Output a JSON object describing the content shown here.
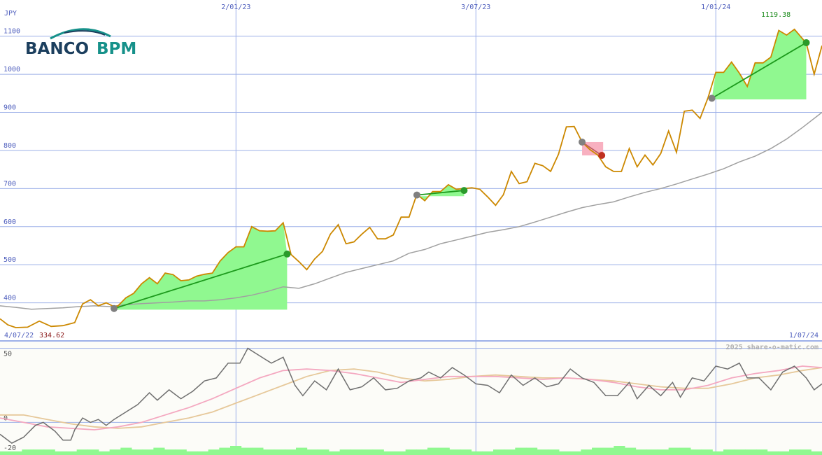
{
  "chart_data": {
    "type": "line",
    "currency": "JPY",
    "brand": {
      "word1": "BANCO",
      "word2": "BPM",
      "color_primary": "#1c3f5e",
      "color_accent": "#16918a"
    },
    "date_start": "4/07/22",
    "date_end": "1/07/24",
    "start_value": "334.62",
    "max_label": "1119.38",
    "watermark": "2025 share-o-matic.com",
    "price_axis": {
      "ticks": [
        400,
        500,
        600,
        700,
        800,
        900,
        1000,
        1100
      ],
      "ylim": [
        300,
        1195
      ]
    },
    "date_axis": {
      "ticks": [
        "2/01/23",
        "3/07/23",
        "1/01/24"
      ]
    },
    "price_series": [
      {
        "i": 0,
        "v": 358
      },
      {
        "i": 2,
        "v": 342
      },
      {
        "i": 4,
        "v": 335
      },
      {
        "i": 7,
        "v": 336
      },
      {
        "i": 10,
        "v": 352
      },
      {
        "i": 13,
        "v": 338
      },
      {
        "i": 16,
        "v": 340
      },
      {
        "i": 19,
        "v": 348
      },
      {
        "i": 21,
        "v": 397
      },
      {
        "i": 23,
        "v": 408
      },
      {
        "i": 25,
        "v": 392
      },
      {
        "i": 27,
        "v": 400
      },
      {
        "i": 29,
        "v": 390
      },
      {
        "i": 30,
        "v": 392
      },
      {
        "i": 32,
        "v": 413
      },
      {
        "i": 34,
        "v": 425
      },
      {
        "i": 36,
        "v": 450
      },
      {
        "i": 38,
        "v": 466
      },
      {
        "i": 40,
        "v": 450
      },
      {
        "i": 42,
        "v": 478
      },
      {
        "i": 44,
        "v": 474
      },
      {
        "i": 46,
        "v": 458
      },
      {
        "i": 48,
        "v": 460
      },
      {
        "i": 50,
        "v": 470
      },
      {
        "i": 52,
        "v": 475
      },
      {
        "i": 54,
        "v": 478
      },
      {
        "i": 56,
        "v": 510
      },
      {
        "i": 58,
        "v": 532
      },
      {
        "i": 60,
        "v": 547
      },
      {
        "i": 62,
        "v": 547
      },
      {
        "i": 64,
        "v": 600
      },
      {
        "i": 66,
        "v": 589
      },
      {
        "i": 68,
        "v": 588
      },
      {
        "i": 70,
        "v": 589
      },
      {
        "i": 72,
        "v": 610
      },
      {
        "i": 74,
        "v": 527
      },
      {
        "i": 76,
        "v": 508
      },
      {
        "i": 78,
        "v": 487
      },
      {
        "i": 80,
        "v": 515
      },
      {
        "i": 82,
        "v": 535
      },
      {
        "i": 84,
        "v": 580
      },
      {
        "i": 86,
        "v": 605
      },
      {
        "i": 88,
        "v": 555
      },
      {
        "i": 90,
        "v": 560
      },
      {
        "i": 92,
        "v": 580
      },
      {
        "i": 94,
        "v": 598
      },
      {
        "i": 96,
        "v": 568
      },
      {
        "i": 98,
        "v": 568
      },
      {
        "i": 100,
        "v": 578
      },
      {
        "i": 102,
        "v": 625
      },
      {
        "i": 104,
        "v": 625
      },
      {
        "i": 106,
        "v": 685
      },
      {
        "i": 108,
        "v": 668
      },
      {
        "i": 110,
        "v": 692
      },
      {
        "i": 112,
        "v": 692
      },
      {
        "i": 114,
        "v": 710
      },
      {
        "i": 116,
        "v": 698
      },
      {
        "i": 118,
        "v": 700
      },
      {
        "i": 120,
        "v": 702
      },
      {
        "i": 122,
        "v": 698
      },
      {
        "i": 124,
        "v": 678
      },
      {
        "i": 126,
        "v": 656
      },
      {
        "i": 128,
        "v": 684
      },
      {
        "i": 130,
        "v": 745
      },
      {
        "i": 132,
        "v": 713
      },
      {
        "i": 134,
        "v": 718
      },
      {
        "i": 136,
        "v": 766
      },
      {
        "i": 138,
        "v": 760
      },
      {
        "i": 140,
        "v": 745
      },
      {
        "i": 142,
        "v": 790
      },
      {
        "i": 144,
        "v": 862
      },
      {
        "i": 146,
        "v": 863
      },
      {
        "i": 148,
        "v": 822
      },
      {
        "i": 150,
        "v": 802
      },
      {
        "i": 152,
        "v": 788
      },
      {
        "i": 154,
        "v": 757
      },
      {
        "i": 156,
        "v": 745
      },
      {
        "i": 158,
        "v": 745
      },
      {
        "i": 160,
        "v": 805
      },
      {
        "i": 162,
        "v": 757
      },
      {
        "i": 164,
        "v": 788
      },
      {
        "i": 166,
        "v": 762
      },
      {
        "i": 168,
        "v": 792
      },
      {
        "i": 170,
        "v": 851
      },
      {
        "i": 172,
        "v": 795
      },
      {
        "i": 174,
        "v": 903
      },
      {
        "i": 176,
        "v": 906
      },
      {
        "i": 178,
        "v": 884
      },
      {
        "i": 180,
        "v": 938
      },
      {
        "i": 182,
        "v": 1005
      },
      {
        "i": 184,
        "v": 1005
      },
      {
        "i": 186,
        "v": 1032
      },
      {
        "i": 188,
        "v": 1003
      },
      {
        "i": 190,
        "v": 968
      },
      {
        "i": 192,
        "v": 1030
      },
      {
        "i": 194,
        "v": 1030
      },
      {
        "i": 196,
        "v": 1045
      },
      {
        "i": 198,
        "v": 1115
      },
      {
        "i": 200,
        "v": 1103
      },
      {
        "i": 202,
        "v": 1118
      },
      {
        "i": 205,
        "v": 1082
      },
      {
        "i": 207,
        "v": 1000
      },
      {
        "i": 209,
        "v": 1075
      }
    ],
    "average_series": [
      {
        "i": 0,
        "v": 392
      },
      {
        "i": 4,
        "v": 388
      },
      {
        "i": 8,
        "v": 383
      },
      {
        "i": 12,
        "v": 385
      },
      {
        "i": 16,
        "v": 387
      },
      {
        "i": 20,
        "v": 390
      },
      {
        "i": 24,
        "v": 392
      },
      {
        "i": 28,
        "v": 390
      },
      {
        "i": 32,
        "v": 395
      },
      {
        "i": 36,
        "v": 398
      },
      {
        "i": 40,
        "v": 400
      },
      {
        "i": 44,
        "v": 402
      },
      {
        "i": 48,
        "v": 405
      },
      {
        "i": 52,
        "v": 405
      },
      {
        "i": 56,
        "v": 408
      },
      {
        "i": 60,
        "v": 413
      },
      {
        "i": 64,
        "v": 420
      },
      {
        "i": 68,
        "v": 430
      },
      {
        "i": 72,
        "v": 442
      },
      {
        "i": 76,
        "v": 438
      },
      {
        "i": 80,
        "v": 450
      },
      {
        "i": 84,
        "v": 465
      },
      {
        "i": 88,
        "v": 480
      },
      {
        "i": 92,
        "v": 490
      },
      {
        "i": 96,
        "v": 500
      },
      {
        "i": 100,
        "v": 510
      },
      {
        "i": 104,
        "v": 530
      },
      {
        "i": 108,
        "v": 540
      },
      {
        "i": 112,
        "v": 555
      },
      {
        "i": 116,
        "v": 565
      },
      {
        "i": 120,
        "v": 575
      },
      {
        "i": 124,
        "v": 585
      },
      {
        "i": 128,
        "v": 592
      },
      {
        "i": 132,
        "v": 600
      },
      {
        "i": 136,
        "v": 612
      },
      {
        "i": 140,
        "v": 625
      },
      {
        "i": 144,
        "v": 638
      },
      {
        "i": 148,
        "v": 650
      },
      {
        "i": 152,
        "v": 658
      },
      {
        "i": 156,
        "v": 665
      },
      {
        "i": 160,
        "v": 678
      },
      {
        "i": 164,
        "v": 690
      },
      {
        "i": 168,
        "v": 700
      },
      {
        "i": 172,
        "v": 712
      },
      {
        "i": 176,
        "v": 725
      },
      {
        "i": 180,
        "v": 738
      },
      {
        "i": 184,
        "v": 752
      },
      {
        "i": 188,
        "v": 770
      },
      {
        "i": 192,
        "v": 785
      },
      {
        "i": 196,
        "v": 805
      },
      {
        "i": 200,
        "v": 830
      },
      {
        "i": 204,
        "v": 860
      },
      {
        "i": 209,
        "v": 900
      }
    ],
    "trades": [
      {
        "entry": {
          "i": 29,
          "v": 385
        },
        "exit": {
          "i": 73,
          "v": 528
        },
        "result": "gain"
      },
      {
        "entry": {
          "i": 106,
          "v": 683
        },
        "exit": {
          "i": 118,
          "v": 695
        },
        "result": "gain"
      },
      {
        "entry": {
          "i": 148,
          "v": 822
        },
        "exit": {
          "i": 153,
          "v": 787
        },
        "result": "loss"
      },
      {
        "entry": {
          "i": 181,
          "v": 937
        },
        "exit": {
          "i": 205,
          "v": 1083
        },
        "result": "gain"
      }
    ],
    "oscillator_axis": {
      "ticks": [
        50,
        0,
        -20
      ],
      "ylim": [
        -22,
        55
      ]
    },
    "oscillator": {
      "main": [
        {
          "i": 0,
          "v": -8
        },
        {
          "i": 3,
          "v": -14
        },
        {
          "i": 6,
          "v": -10
        },
        {
          "i": 9,
          "v": -2
        },
        {
          "i": 11,
          "v": 0
        },
        {
          "i": 14,
          "v": -6
        },
        {
          "i": 16,
          "v": -12
        },
        {
          "i": 18,
          "v": -12
        },
        {
          "i": 19,
          "v": -5
        },
        {
          "i": 21,
          "v": 3
        },
        {
          "i": 23,
          "v": 0
        },
        {
          "i": 25,
          "v": 2
        },
        {
          "i": 27,
          "v": -2
        },
        {
          "i": 29,
          "v": 2
        },
        {
          "i": 32,
          "v": 7
        },
        {
          "i": 35,
          "v": 12
        },
        {
          "i": 38,
          "v": 20
        },
        {
          "i": 40,
          "v": 15
        },
        {
          "i": 43,
          "v": 22
        },
        {
          "i": 46,
          "v": 16
        },
        {
          "i": 49,
          "v": 21
        },
        {
          "i": 52,
          "v": 28
        },
        {
          "i": 55,
          "v": 30
        },
        {
          "i": 58,
          "v": 40
        },
        {
          "i": 61,
          "v": 40
        },
        {
          "i": 63,
          "v": 50
        },
        {
          "i": 66,
          "v": 45
        },
        {
          "i": 69,
          "v": 40
        },
        {
          "i": 72,
          "v": 44
        },
        {
          "i": 75,
          "v": 25
        },
        {
          "i": 77,
          "v": 18
        },
        {
          "i": 80,
          "v": 28
        },
        {
          "i": 83,
          "v": 22
        },
        {
          "i": 86,
          "v": 36
        },
        {
          "i": 89,
          "v": 22
        },
        {
          "i": 92,
          "v": 24
        },
        {
          "i": 95,
          "v": 30
        },
        {
          "i": 98,
          "v": 22
        },
        {
          "i": 101,
          "v": 23
        },
        {
          "i": 104,
          "v": 28
        },
        {
          "i": 107,
          "v": 30
        },
        {
          "i": 109,
          "v": 34
        },
        {
          "i": 112,
          "v": 30
        },
        {
          "i": 115,
          "v": 37
        },
        {
          "i": 118,
          "v": 32
        },
        {
          "i": 121,
          "v": 26
        },
        {
          "i": 124,
          "v": 25
        },
        {
          "i": 127,
          "v": 20
        },
        {
          "i": 130,
          "v": 32
        },
        {
          "i": 133,
          "v": 25
        },
        {
          "i": 136,
          "v": 30
        },
        {
          "i": 139,
          "v": 24
        },
        {
          "i": 142,
          "v": 26
        },
        {
          "i": 145,
          "v": 36
        },
        {
          "i": 148,
          "v": 30
        },
        {
          "i": 151,
          "v": 27
        },
        {
          "i": 154,
          "v": 18
        },
        {
          "i": 157,
          "v": 18
        },
        {
          "i": 160,
          "v": 27
        },
        {
          "i": 162,
          "v": 16
        },
        {
          "i": 165,
          "v": 25
        },
        {
          "i": 168,
          "v": 18
        },
        {
          "i": 171,
          "v": 27
        },
        {
          "i": 173,
          "v": 17
        },
        {
          "i": 176,
          "v": 30
        },
        {
          "i": 179,
          "v": 28
        },
        {
          "i": 182,
          "v": 38
        },
        {
          "i": 185,
          "v": 36
        },
        {
          "i": 188,
          "v": 40
        },
        {
          "i": 190,
          "v": 30
        },
        {
          "i": 193,
          "v": 30
        },
        {
          "i": 196,
          "v": 22
        },
        {
          "i": 199,
          "v": 34
        },
        {
          "i": 202,
          "v": 38
        },
        {
          "i": 205,
          "v": 30
        },
        {
          "i": 207,
          "v": 22
        },
        {
          "i": 209,
          "v": 26
        }
      ],
      "signal_fast": [
        {
          "i": 0,
          "v": 3
        },
        {
          "i": 6,
          "v": 0
        },
        {
          "i": 12,
          "v": -3
        },
        {
          "i": 18,
          "v": -4
        },
        {
          "i": 24,
          "v": -5
        },
        {
          "i": 30,
          "v": -3
        },
        {
          "i": 36,
          "v": 0
        },
        {
          "i": 42,
          "v": 5
        },
        {
          "i": 48,
          "v": 10
        },
        {
          "i": 54,
          "v": 16
        },
        {
          "i": 60,
          "v": 23
        },
        {
          "i": 66,
          "v": 30
        },
        {
          "i": 72,
          "v": 35
        },
        {
          "i": 78,
          "v": 36
        },
        {
          "i": 84,
          "v": 35
        },
        {
          "i": 90,
          "v": 33
        },
        {
          "i": 96,
          "v": 30
        },
        {
          "i": 102,
          "v": 27
        },
        {
          "i": 108,
          "v": 29
        },
        {
          "i": 114,
          "v": 31
        },
        {
          "i": 120,
          "v": 31
        },
        {
          "i": 126,
          "v": 31
        },
        {
          "i": 132,
          "v": 30
        },
        {
          "i": 138,
          "v": 29
        },
        {
          "i": 144,
          "v": 30
        },
        {
          "i": 150,
          "v": 29
        },
        {
          "i": 156,
          "v": 27
        },
        {
          "i": 162,
          "v": 24
        },
        {
          "i": 168,
          "v": 22
        },
        {
          "i": 174,
          "v": 22
        },
        {
          "i": 180,
          "v": 25
        },
        {
          "i": 186,
          "v": 30
        },
        {
          "i": 192,
          "v": 33
        },
        {
          "i": 198,
          "v": 35
        },
        {
          "i": 204,
          "v": 38
        },
        {
          "i": 209,
          "v": 37
        }
      ],
      "signal_slow": [
        {
          "i": 0,
          "v": 5
        },
        {
          "i": 6,
          "v": 5
        },
        {
          "i": 12,
          "v": 2
        },
        {
          "i": 18,
          "v": -1
        },
        {
          "i": 24,
          "v": -3
        },
        {
          "i": 30,
          "v": -4
        },
        {
          "i": 36,
          "v": -3
        },
        {
          "i": 42,
          "v": 0
        },
        {
          "i": 48,
          "v": 3
        },
        {
          "i": 54,
          "v": 7
        },
        {
          "i": 60,
          "v": 13
        },
        {
          "i": 66,
          "v": 19
        },
        {
          "i": 72,
          "v": 25
        },
        {
          "i": 78,
          "v": 31
        },
        {
          "i": 84,
          "v": 35
        },
        {
          "i": 90,
          "v": 36
        },
        {
          "i": 96,
          "v": 34
        },
        {
          "i": 102,
          "v": 30
        },
        {
          "i": 108,
          "v": 28
        },
        {
          "i": 114,
          "v": 29
        },
        {
          "i": 120,
          "v": 31
        },
        {
          "i": 126,
          "v": 32
        },
        {
          "i": 132,
          "v": 31
        },
        {
          "i": 138,
          "v": 30
        },
        {
          "i": 144,
          "v": 30
        },
        {
          "i": 150,
          "v": 29
        },
        {
          "i": 156,
          "v": 28
        },
        {
          "i": 162,
          "v": 26
        },
        {
          "i": 168,
          "v": 24
        },
        {
          "i": 174,
          "v": 23
        },
        {
          "i": 180,
          "v": 23
        },
        {
          "i": 186,
          "v": 26
        },
        {
          "i": 192,
          "v": 30
        },
        {
          "i": 198,
          "v": 32
        },
        {
          "i": 204,
          "v": 35
        },
        {
          "i": 209,
          "v": 37
        }
      ]
    },
    "volume": [
      2,
      2,
      3,
      3,
      3,
      2,
      2,
      3,
      3,
      2,
      3,
      4,
      3,
      3,
      4,
      3,
      3,
      2,
      2,
      3,
      4,
      5,
      4,
      4,
      3,
      3,
      3,
      4,
      3,
      3,
      2,
      3,
      3,
      3,
      3,
      2,
      2,
      3,
      3,
      4,
      4,
      3,
      3,
      2,
      2,
      3,
      3,
      4,
      4,
      3,
      3,
      2,
      2,
      3,
      4,
      4,
      5,
      4,
      3,
      3,
      3,
      4,
      4,
      3,
      3,
      2,
      3,
      3,
      3,
      3,
      2,
      2,
      3,
      3,
      2
    ],
    "colors": {
      "price": "#cc8800",
      "average": "#a0a0a0",
      "grid": "#9db0e8",
      "axis_text": "#4e5ebd",
      "gain_fill": "#90f890",
      "loss_fill": "#f8b0c0",
      "trade_line": "#1c9a1c",
      "loss_line": "#c06060",
      "marker_entry": "#808080",
      "marker_gain": "#2a9a2a",
      "marker_loss": "#c03020",
      "max_label": "#1a8a1a",
      "start_label": "#8a1818",
      "osc_main": "#707070",
      "osc_fast": "#f4a8c0",
      "osc_slow": "#e6c89a",
      "volume": "#90f890",
      "watermark": "#b0b0b0"
    }
  }
}
